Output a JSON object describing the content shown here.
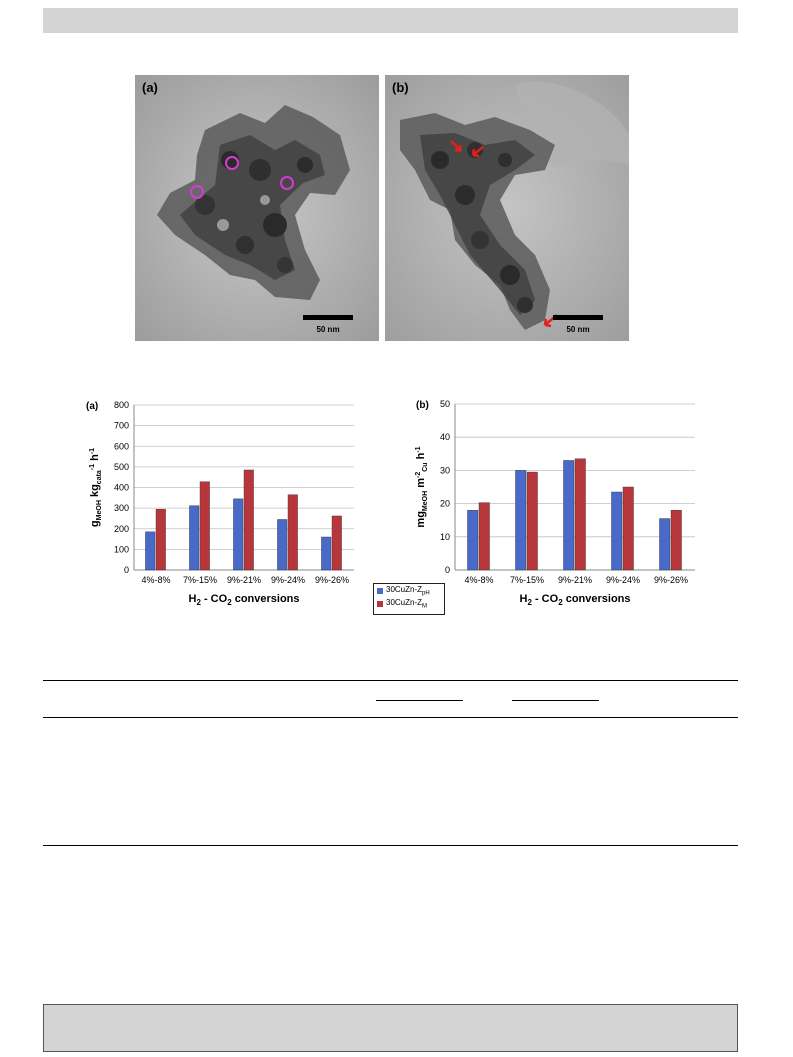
{
  "micrographs": [
    {
      "panel": "(a)",
      "scale_label": "50 nm",
      "markers": "magenta circles"
    },
    {
      "panel": "(b)",
      "scale_label": "50 nm",
      "markers": "red arrows"
    }
  ],
  "colors": {
    "series_pH": "#4a6ac8",
    "series_M": "#b8363b",
    "circle": "#d43ad4",
    "arrow": "#e02020"
  },
  "legend": {
    "items": [
      {
        "base": "30CuZn-Z",
        "sub": "pH",
        "color": "#4a6ac8"
      },
      {
        "base": "30CuZn-Z",
        "sub": "M",
        "color": "#b8363b"
      }
    ]
  },
  "chart_data": [
    {
      "type": "bar",
      "panel": "(a)",
      "categories": [
        "4%-8%",
        "7%-15%",
        "9%-21%",
        "9%-24%",
        "9%-26%"
      ],
      "series": [
        {
          "name": "30CuZn-ZpH",
          "values": [
            185,
            312,
            345,
            245,
            160
          ]
        },
        {
          "name": "30CuZn-ZM",
          "values": [
            295,
            428,
            485,
            365,
            262
          ]
        }
      ],
      "ylim": [
        0,
        800
      ],
      "yticks": [
        0,
        100,
        200,
        300,
        400,
        500,
        600,
        700,
        800
      ],
      "xlabel": "H2 - CO2 conversions",
      "ylabel": "gMeOH kgcata-1 h-1",
      "grid": true
    },
    {
      "type": "bar",
      "panel": "(b)",
      "categories": [
        "4%-8%",
        "7%-15%",
        "9%-21%",
        "9%-24%",
        "9%-26%"
      ],
      "series": [
        {
          "name": "30CuZn-ZpH",
          "values": [
            18,
            30,
            33,
            23.5,
            15.5
          ]
        },
        {
          "name": "30CuZn-ZM",
          "values": [
            20.3,
            29.5,
            33.5,
            25,
            18
          ]
        }
      ],
      "ylim": [
        0,
        50
      ],
      "yticks": [
        0,
        10,
        20,
        30,
        40,
        50
      ],
      "xlabel": "H2 - CO2 conversions",
      "ylabel": "mgMeOH m-2Cu h-1",
      "grid": true
    }
  ]
}
